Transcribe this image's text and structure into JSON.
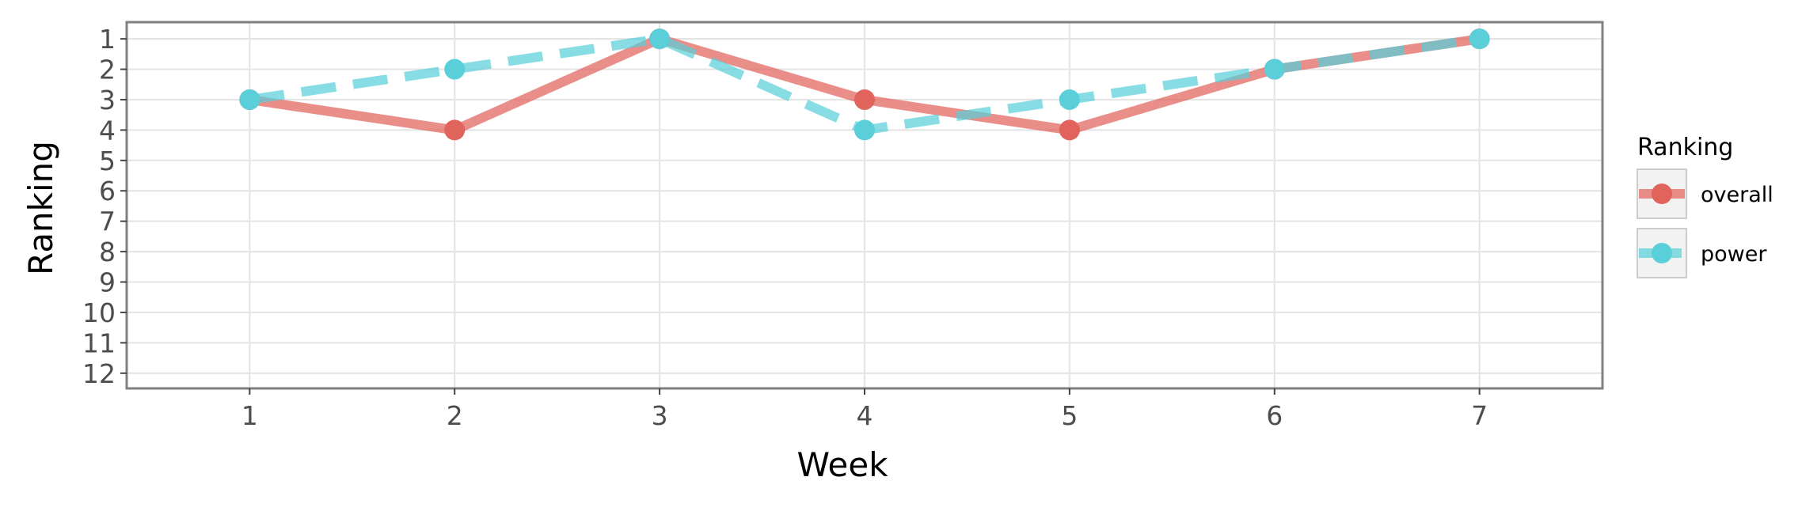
{
  "chart_data": {
    "type": "line",
    "title": "",
    "xlabel": "Week",
    "ylabel": "Ranking",
    "x": [
      1,
      2,
      3,
      4,
      5,
      6,
      7
    ],
    "x_ticks": [
      "1",
      "2",
      "3",
      "4",
      "5",
      "6",
      "7"
    ],
    "y_ticks": [
      "1",
      "2",
      "3",
      "4",
      "5",
      "6",
      "7",
      "8",
      "9",
      "10",
      "11",
      "12"
    ],
    "xlim": [
      0.4,
      7.6
    ],
    "ylim": [
      12.5,
      0.45
    ],
    "y_reversed": true,
    "grid": true,
    "legend": {
      "title": "Ranking",
      "position": "right"
    },
    "series": [
      {
        "name": "overall",
        "values": [
          3,
          4,
          1,
          3,
          4,
          2,
          1
        ],
        "color": "#E0635C",
        "line_style": "solid"
      },
      {
        "name": "power",
        "values": [
          3,
          2,
          1,
          4,
          3,
          2,
          1
        ],
        "color": "#5ACFD9",
        "line_style": "dashed"
      }
    ]
  }
}
